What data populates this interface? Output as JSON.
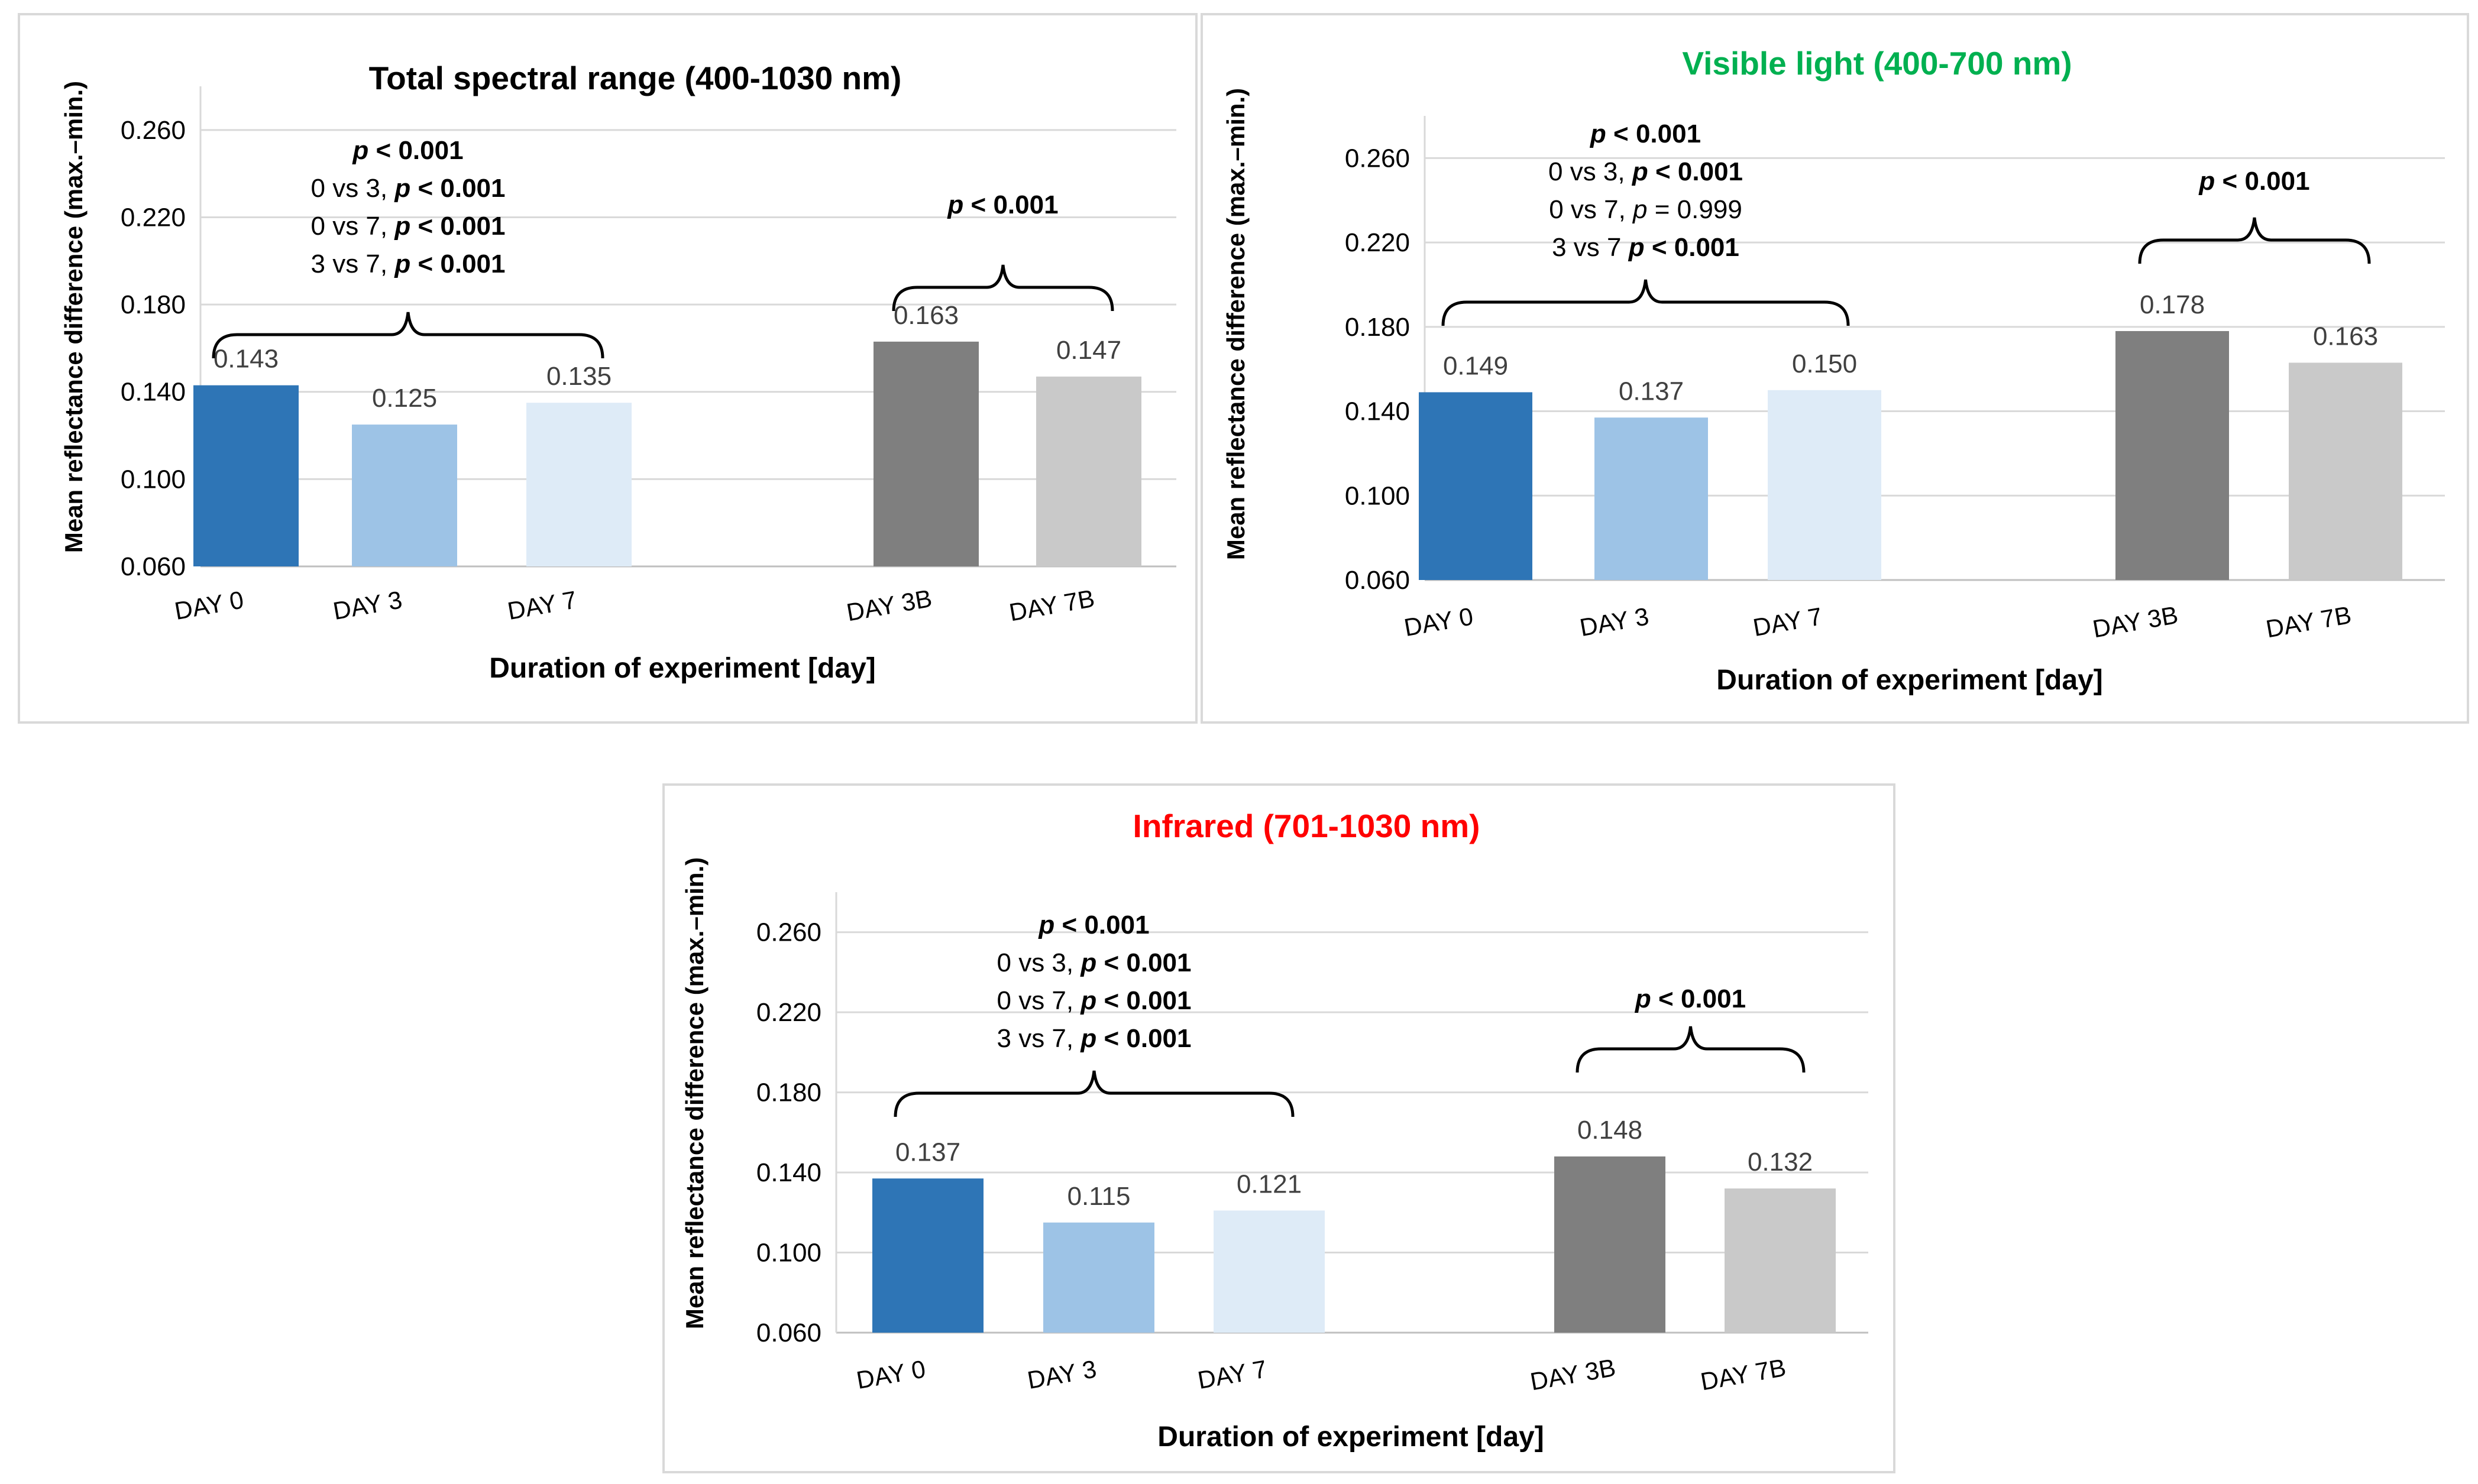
{
  "chart_data": [
    {
      "type": "bar",
      "title": "Total spectral range (400-1030 nm)",
      "title_color": "#000000",
      "xlabel": "Duration of experiment [day]",
      "ylabel": "Mean reflectance difference (max.–min.)",
      "ylim": [
        0.06,
        0.28
      ],
      "yticks": [
        "0.060",
        "0.100",
        "0.140",
        "0.180",
        "0.220",
        "0.260"
      ],
      "categories": [
        "DAY 0",
        "DAY 3",
        "DAY 7",
        "DAY 3B",
        "DAY 7B"
      ],
      "values": [
        0.143,
        0.125,
        0.135,
        0.163,
        0.147
      ],
      "value_labels": [
        "0.143",
        "0.125",
        "0.135",
        "0.163",
        "0.147"
      ],
      "colors": [
        "#2e75b6",
        "#9dc3e6",
        "#deebf7",
        "#7f7f7f",
        "#c9c9c9"
      ],
      "grid": true,
      "annotations": [
        {
          "span": [
            0,
            2
          ],
          "lines": [
            [
              {
                "t": "p",
                "b": true,
                "i": true
              },
              {
                "t": " < 0.001",
                "b": true
              }
            ],
            [
              {
                "t": "0 vs 3, "
              },
              {
                "t": "p",
                "b": true,
                "i": true
              },
              {
                "t": " < 0.001",
                "b": true
              }
            ],
            [
              {
                "t": "0 vs 7, "
              },
              {
                "t": "p",
                "b": true,
                "i": true
              },
              {
                "t": " < 0.001",
                "b": true
              }
            ],
            [
              {
                "t": "3 vs 7, "
              },
              {
                "t": "p",
                "b": true,
                "i": true
              },
              {
                "t": " < 0.001",
                "b": true
              }
            ]
          ]
        },
        {
          "span": [
            3,
            4
          ],
          "lines": [
            [
              {
                "t": "p",
                "b": true,
                "i": true
              },
              {
                "t": " < 0.001",
                "b": true
              }
            ]
          ]
        }
      ]
    },
    {
      "type": "bar",
      "title": "Visible light (400-700 nm)",
      "title_color": "#00b050",
      "xlabel": "Duration of experiment [day]",
      "ylabel": "Mean reflectance difference (max.–min.)",
      "ylim": [
        0.06,
        0.28
      ],
      "yticks": [
        "0.060",
        "0.100",
        "0.140",
        "0.180",
        "0.220",
        "0.260"
      ],
      "categories": [
        "DAY 0",
        "DAY 3",
        "DAY 7",
        "DAY 3B",
        "DAY 7B"
      ],
      "values": [
        0.149,
        0.137,
        0.15,
        0.178,
        0.163
      ],
      "value_labels": [
        "0.149",
        "0.137",
        "0.150",
        "0.178",
        "0.163"
      ],
      "colors": [
        "#2e75b6",
        "#9dc3e6",
        "#deebf7",
        "#7f7f7f",
        "#c9c9c9"
      ],
      "grid": true,
      "annotations": [
        {
          "span": [
            0,
            2
          ],
          "lines": [
            [
              {
                "t": "p",
                "b": true,
                "i": true
              },
              {
                "t": " < 0.001",
                "b": true
              }
            ],
            [
              {
                "t": "0 vs 3, "
              },
              {
                "t": "p",
                "b": true,
                "i": true
              },
              {
                "t": " < 0.001",
                "b": true
              }
            ],
            [
              {
                "t": "0 vs 7, "
              },
              {
                "t": "p",
                "i": true
              },
              {
                "t": " = 0.999"
              }
            ],
            [
              {
                "t": "3 vs 7 "
              },
              {
                "t": "p",
                "b": true,
                "i": true
              },
              {
                "t": " < 0.001",
                "b": true
              }
            ]
          ]
        },
        {
          "span": [
            3,
            4
          ],
          "lines": [
            [
              {
                "t": "p",
                "b": true,
                "i": true
              },
              {
                "t": " < 0.001",
                "b": true
              }
            ]
          ]
        }
      ]
    },
    {
      "type": "bar",
      "title": "Infrared (701-1030 nm)",
      "title_color": "#ff0000",
      "xlabel": "Duration of experiment [day]",
      "ylabel": "Mean reflectance difference (max.–min.)",
      "ylim": [
        0.06,
        0.28
      ],
      "yticks": [
        "0.060",
        "0.100",
        "0.140",
        "0.180",
        "0.220",
        "0.260"
      ],
      "categories": [
        "DAY 0",
        "DAY 3",
        "DAY 7",
        "DAY 3B",
        "DAY 7B"
      ],
      "values": [
        0.137,
        0.115,
        0.121,
        0.148,
        0.132
      ],
      "value_labels": [
        "0.137",
        "0.115",
        "0.121",
        "0.148",
        "0.132"
      ],
      "colors": [
        "#2e75b6",
        "#9dc3e6",
        "#deebf7",
        "#7f7f7f",
        "#c9c9c9"
      ],
      "grid": true,
      "annotations": [
        {
          "span": [
            0,
            2
          ],
          "lines": [
            [
              {
                "t": "p",
                "b": true,
                "i": true
              },
              {
                "t": " < 0.001",
                "b": true
              }
            ],
            [
              {
                "t": "0 vs 3, "
              },
              {
                "t": "p",
                "b": true,
                "i": true
              },
              {
                "t": " < 0.001",
                "b": true
              }
            ],
            [
              {
                "t": "0 vs 7, "
              },
              {
                "t": "p",
                "b": true,
                "i": true
              },
              {
                "t": " < 0.001",
                "b": true
              }
            ],
            [
              {
                "t": "3 vs 7, "
              },
              {
                "t": "p",
                "b": true,
                "i": true
              },
              {
                "t": " < 0.001",
                "b": true
              }
            ]
          ]
        },
        {
          "span": [
            3,
            4
          ],
          "lines": [
            [
              {
                "t": "p",
                "b": true,
                "i": true
              },
              {
                "t": " < 0.001",
                "b": true
              }
            ]
          ]
        }
      ]
    }
  ]
}
